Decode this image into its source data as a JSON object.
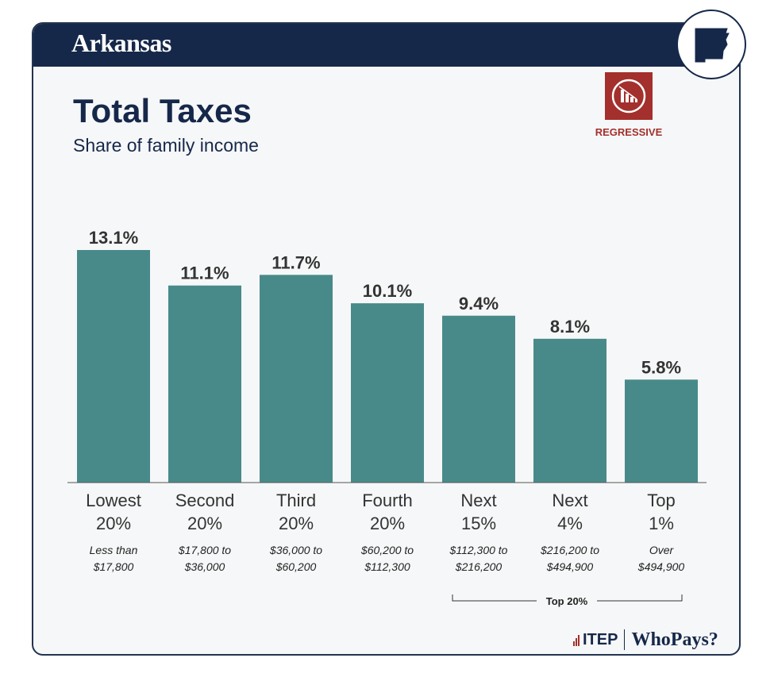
{
  "header": {
    "state": "Arkansas"
  },
  "title": "Total Taxes",
  "subtitle": "Share of family income",
  "regressive_label": "REGRESSIVE",
  "group_label": "Top 20%",
  "footer": {
    "brand": "ITEP",
    "product": "WhoPays?"
  },
  "colors": {
    "navy": "#16284a",
    "bar": "#488a8a",
    "red": "#a3302c"
  },
  "chart_data": {
    "type": "bar",
    "title": "Total Taxes",
    "subtitle": "Share of family income",
    "categories": [
      "Lowest 20%",
      "Second 20%",
      "Third 20%",
      "Fourth 20%",
      "Next 15%",
      "Next 4%",
      "Top 1%"
    ],
    "category_lines": [
      [
        "Lowest",
        "20%"
      ],
      [
        "Second",
        "20%"
      ],
      [
        "Third",
        "20%"
      ],
      [
        "Fourth",
        "20%"
      ],
      [
        "Next",
        "15%"
      ],
      [
        "Next",
        "4%"
      ],
      [
        "Top",
        "1%"
      ]
    ],
    "income_ranges": [
      [
        "Less than",
        "$17,800"
      ],
      [
        "$17,800 to",
        "$36,000"
      ],
      [
        "$36,000 to",
        "$60,200"
      ],
      [
        "$60,200 to",
        "$112,300"
      ],
      [
        "$112,300 to",
        "$216,200"
      ],
      [
        "$216,200 to",
        "$494,900"
      ],
      [
        "Over",
        "$494,900"
      ]
    ],
    "values": [
      13.1,
      11.1,
      11.7,
      10.1,
      9.4,
      8.1,
      5.8
    ],
    "value_labels": [
      "13.1%",
      "11.1%",
      "11.7%",
      "10.1%",
      "9.4%",
      "8.1%",
      "5.8%"
    ],
    "ylim": [
      0,
      13.1
    ],
    "xlabel": "",
    "ylabel": ""
  }
}
